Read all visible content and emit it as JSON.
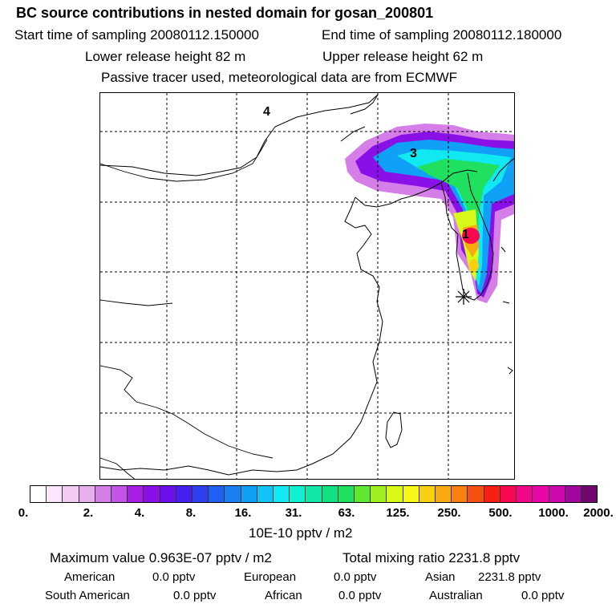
{
  "header": {
    "title": "BC  source contributions in nested domain for gosan_200801",
    "start_time": "Start time of sampling 20080112.150000",
    "end_time": "End time of sampling 20080112.180000",
    "lower_height": "Lower release height   82 m",
    "upper_height": "Upper release height   62 m",
    "tracer_note": "Passive tracer used, meteorological data are from ECMWF"
  },
  "map": {
    "region_labels": [
      "4",
      "3",
      "1"
    ],
    "receptor_marker": "star-marker"
  },
  "colorbar": {
    "tick_labels": [
      "0.",
      "2.",
      "4.",
      "8.",
      "16.",
      "31.",
      "63.",
      "125.",
      "250.",
      "500.",
      "1000.",
      "2000."
    ],
    "colors": [
      "#ffffff",
      "#fbe6fb",
      "#f3cbf3",
      "#e9b0ef",
      "#d67ee8",
      "#c354e8",
      "#a81ee6",
      "#8a10e8",
      "#6a10ea",
      "#4820ee",
      "#3040f0",
      "#2060f2",
      "#1a80f4",
      "#10a0f6",
      "#10c4f8",
      "#10e8f2",
      "#10f0d0",
      "#10e8a8",
      "#10e080",
      "#20e060",
      "#60e830",
      "#a0f020",
      "#d8f818",
      "#f8f818",
      "#f8d010",
      "#f8a810",
      "#f88010",
      "#f85010",
      "#f82010",
      "#f80850",
      "#f00888",
      "#e808a8",
      "#d008b0",
      "#a008a0",
      "#700870"
    ],
    "units": "10E-10 pptv / m2"
  },
  "summary": {
    "max_value": "Maximum value  0.963E-07 pptv / m2",
    "total_mixing": "Total mixing ratio     2231.8 pptv",
    "american_label": "American",
    "american_value": "0.0 pptv",
    "european_label": "European",
    "european_value": "0.0 pptv",
    "asian_label": "Asian",
    "asian_value": "2231.8 pptv",
    "south_american_label": "South American",
    "south_american_value": "0.0 pptv",
    "african_label": "African",
    "african_value": "0.0 pptv",
    "australian_label": "Australian",
    "australian_value": "0.0 pptv"
  }
}
